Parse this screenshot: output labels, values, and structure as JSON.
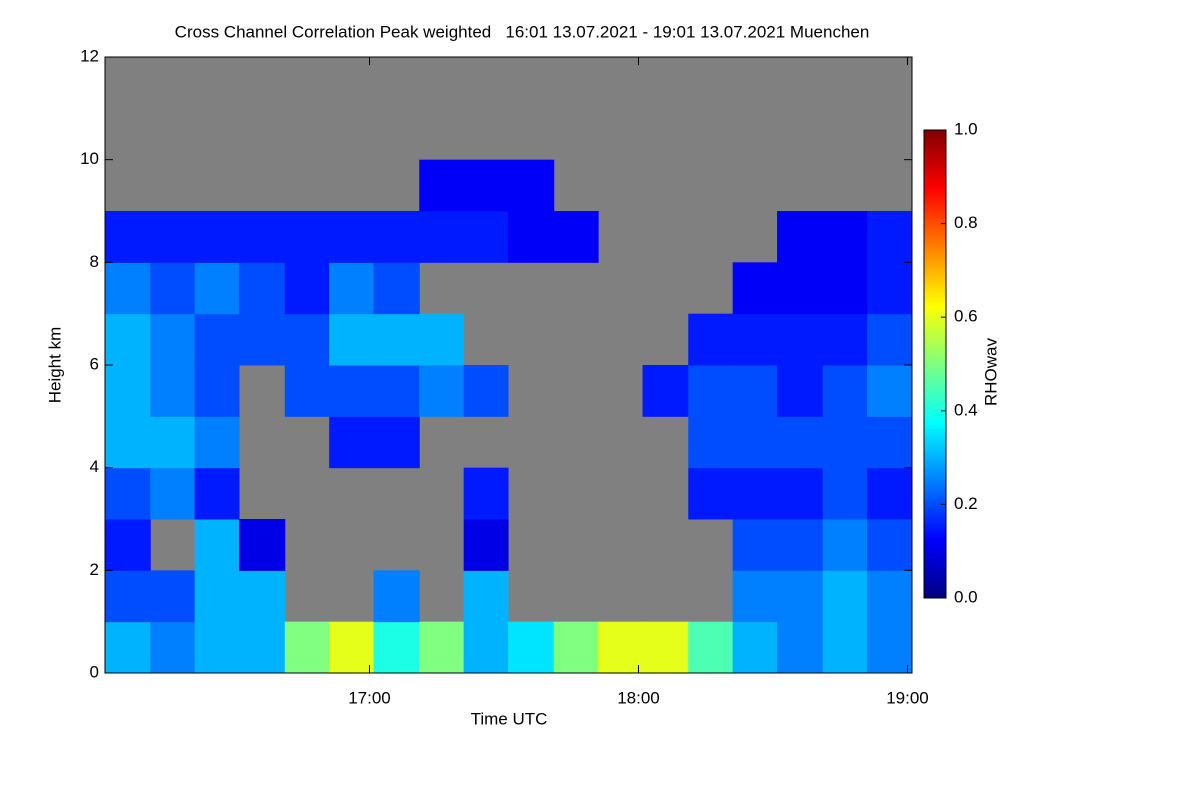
{
  "chart_data": {
    "type": "heatmap",
    "title": "Cross Channel Correlation Peak weighted   16:01 13.07.2021 - 19:01 13.07.2021 Muenchen",
    "x_label": "Time UTC",
    "y_label": "Height km",
    "colorbar_label": "RHOwav",
    "xlim": [
      16.0167,
      19.0167
    ],
    "xticks": [
      {
        "value": 17,
        "label": "17:00"
      },
      {
        "value": 18,
        "label": "18:00"
      },
      {
        "value": 19,
        "label": "19:00"
      }
    ],
    "ylim": [
      0,
      12
    ],
    "yticks": [
      0,
      2,
      4,
      6,
      8,
      10,
      12
    ],
    "clim": [
      0,
      1
    ],
    "cticks": [
      {
        "value": 0,
        "label": "0.0"
      },
      {
        "value": 0.2,
        "label": "0.2"
      },
      {
        "value": 0.4,
        "label": "0.4"
      },
      {
        "value": 0.6,
        "label": "0.6"
      },
      {
        "value": 0.8,
        "label": "0.8"
      },
      {
        "value": 1,
        "label": "1.0"
      }
    ],
    "colormap": "jet",
    "background_color": "#808080",
    "x": [
      16.1,
      16.27,
      16.43,
      16.6,
      16.77,
      16.93,
      17.1,
      17.27,
      17.43,
      17.6,
      17.77,
      17.93,
      18.1,
      18.27,
      18.43,
      18.6,
      18.77,
      18.93
    ],
    "y": [
      0.5,
      1.5,
      2.5,
      3.5,
      4.5,
      5.5,
      6.5,
      7.5,
      8.5,
      9.5,
      10.5,
      11.5
    ],
    "z": [
      [
        0.3,
        0.2,
        0.15,
        0.2,
        0.3,
        0.3,
        0.3,
        0.25,
        0.15,
        null,
        null,
        null
      ],
      [
        0.25,
        0.2,
        null,
        0.25,
        0.3,
        0.25,
        0.25,
        0.2,
        0.15,
        null,
        null,
        null
      ],
      [
        0.3,
        0.3,
        0.3,
        0.15,
        0.25,
        0.2,
        0.2,
        0.25,
        0.15,
        null,
        null,
        null
      ],
      [
        0.3,
        0.3,
        0.1,
        null,
        null,
        null,
        0.2,
        0.2,
        0.15,
        null,
        null,
        null
      ],
      [
        0.5,
        null,
        null,
        null,
        null,
        0.2,
        0.2,
        0.15,
        0.15,
        null,
        null,
        null
      ],
      [
        0.6,
        null,
        null,
        null,
        0.15,
        0.2,
        0.3,
        0.25,
        0.15,
        null,
        null,
        null
      ],
      [
        0.4,
        0.25,
        null,
        null,
        0.15,
        0.2,
        0.3,
        0.2,
        0.15,
        null,
        null,
        null
      ],
      [
        0.5,
        null,
        null,
        null,
        null,
        0.25,
        0.3,
        null,
        0.15,
        0.12,
        null,
        null
      ],
      [
        0.3,
        0.3,
        0.1,
        0.15,
        null,
        0.2,
        null,
        null,
        0.15,
        0.12,
        null,
        null
      ],
      [
        0.35,
        null,
        null,
        null,
        null,
        null,
        null,
        null,
        0.12,
        0.12,
        null,
        null
      ],
      [
        0.5,
        null,
        null,
        null,
        null,
        null,
        null,
        null,
        0.12,
        null,
        null,
        null
      ],
      [
        0.6,
        null,
        null,
        null,
        null,
        null,
        null,
        null,
        null,
        null,
        null,
        null
      ],
      [
        0.6,
        null,
        null,
        null,
        null,
        0.15,
        null,
        null,
        null,
        null,
        null,
        null
      ],
      [
        0.45,
        null,
        null,
        0.15,
        0.2,
        0.2,
        0.15,
        null,
        null,
        null,
        null,
        null
      ],
      [
        0.3,
        0.25,
        0.2,
        0.15,
        0.2,
        0.2,
        0.15,
        0.12,
        null,
        null,
        null,
        null
      ],
      [
        0.25,
        0.25,
        0.2,
        0.15,
        0.2,
        0.15,
        0.15,
        0.12,
        0.12,
        null,
        null,
        null
      ],
      [
        0.3,
        0.3,
        0.25,
        0.2,
        0.2,
        0.2,
        0.15,
        0.12,
        0.12,
        null,
        null,
        null
      ],
      [
        0.25,
        0.25,
        0.2,
        0.15,
        0.2,
        0.25,
        0.2,
        0.15,
        0.15,
        null,
        null,
        null
      ]
    ]
  }
}
